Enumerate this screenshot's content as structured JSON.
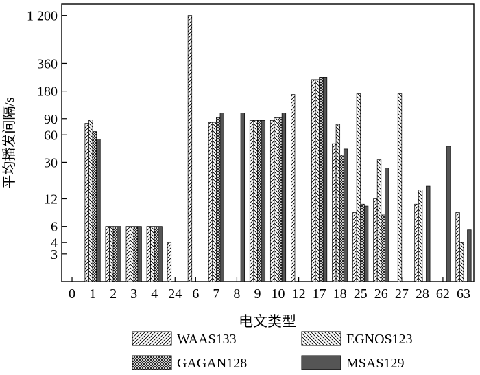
{
  "chart_data": {
    "type": "bar",
    "ylabel": "平均播发间隔/s",
    "xlabel": "电文类型",
    "y_scale": "log",
    "ylim": [
      1.5,
      1600
    ],
    "y_ticks": [
      {
        "value": 3,
        "label": "3"
      },
      {
        "value": 4,
        "label": "4"
      },
      {
        "value": 6,
        "label": "6"
      },
      {
        "value": 12,
        "label": "12"
      },
      {
        "value": 30,
        "label": "30"
      },
      {
        "value": 60,
        "label": "60"
      },
      {
        "value": 90,
        "label": "90"
      },
      {
        "value": 180,
        "label": "180"
      },
      {
        "value": 360,
        "label": "360"
      },
      {
        "value": 1200,
        "label": "1 200"
      }
    ],
    "categories": [
      "0",
      "1",
      "2",
      "3",
      "4",
      "24",
      "6",
      "7",
      "8",
      "9",
      "10",
      "12",
      "17",
      "18",
      "25",
      "26",
      "27",
      "28",
      "62",
      "63"
    ],
    "series": [
      {
        "name": "WAAS133",
        "pattern": "hatch-fwd",
        "values": [
          null,
          80,
          6,
          6,
          6,
          4,
          1200,
          82,
          null,
          86,
          86,
          165,
          240,
          48,
          8.5,
          12,
          null,
          10.5,
          null,
          8.5
        ]
      },
      {
        "name": "EGNOS123",
        "pattern": "hatch-back",
        "values": [
          null,
          87,
          6,
          6,
          6,
          null,
          null,
          82,
          null,
          86,
          92,
          null,
          240,
          78,
          168,
          32,
          168,
          15,
          null,
          4
        ]
      },
      {
        "name": "GAGAN128",
        "pattern": "crosshatch",
        "values": [
          null,
          65,
          6,
          6,
          6,
          null,
          null,
          92,
          null,
          86,
          92,
          null,
          255,
          36,
          10.5,
          8,
          null,
          null,
          null,
          null
        ]
      },
      {
        "name": "MSAS129",
        "pattern": "solid",
        "values": [
          null,
          54,
          6,
          6,
          6,
          null,
          null,
          104,
          104,
          86,
          104,
          null,
          255,
          42,
          10,
          26,
          null,
          16.5,
          45,
          5.5
        ]
      }
    ],
    "legend": {
      "placement": "bottom",
      "columns": 2
    }
  }
}
